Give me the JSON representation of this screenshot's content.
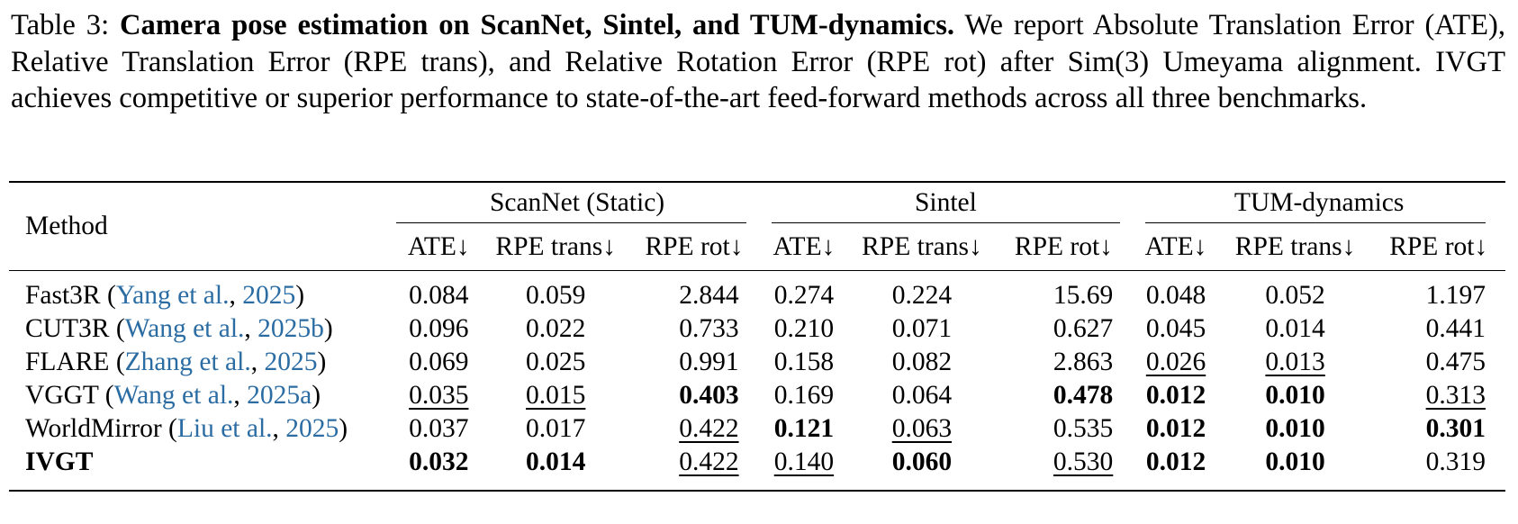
{
  "caption": {
    "label": "Table 3:",
    "title": "Camera pose estimation on ScanNet, Sintel, and TUM-dynamics.",
    "body": "We report Absolute Translation Error (ATE), Relative Translation Error (RPE trans), and Relative Rotation Error (RPE rot) after Sim(3) Umeyama alignment. IVGT achieves competitive or superior performance to state-of-the-art feed-forward methods across all three benchmarks."
  },
  "table": {
    "method_header": "Method",
    "groups": [
      "ScanNet (Static)",
      "Sintel",
      "TUM-dynamics"
    ],
    "metrics": [
      "ATE↓",
      "RPE trans↓",
      "RPE rot↓",
      "ATE↓",
      "RPE trans↓",
      "RPE rot↓",
      "ATE↓",
      "RPE trans↓",
      "RPE rot↓"
    ],
    "rows": [
      {
        "method": "Fast3R",
        "cite_open": " (",
        "cite_authors": "Yang et al.",
        "cite_sep": ", ",
        "cite_year": "2025",
        "cite_close": ")",
        "values": [
          "0.084",
          "0.059",
          "2.844",
          "0.274",
          "0.224",
          "15.69",
          "0.048",
          "0.052",
          "1.197"
        ],
        "style": [
          "",
          "",
          "",
          "",
          "",
          "",
          "",
          "",
          ""
        ]
      },
      {
        "method": "CUT3R",
        "cite_open": " (",
        "cite_authors": "Wang et al.",
        "cite_sep": ", ",
        "cite_year": "2025b",
        "cite_close": ")",
        "values": [
          "0.096",
          "0.022",
          "0.733",
          "0.210",
          "0.071",
          "0.627",
          "0.045",
          "0.014",
          "0.441"
        ],
        "style": [
          "",
          "",
          "",
          "",
          "",
          "",
          "",
          "",
          ""
        ]
      },
      {
        "method": "FLARE",
        "cite_open": " (",
        "cite_authors": "Zhang et al.",
        "cite_sep": ", ",
        "cite_year": "2025",
        "cite_close": ")",
        "values": [
          "0.069",
          "0.025",
          "0.991",
          "0.158",
          "0.082",
          "2.863",
          "0.026",
          "0.013",
          "0.475"
        ],
        "style": [
          "",
          "",
          "",
          "",
          "",
          "",
          "underline",
          "underline",
          ""
        ]
      },
      {
        "method": "VGGT",
        "cite_open": " (",
        "cite_authors": "Wang et al.",
        "cite_sep": ", ",
        "cite_year": "2025a",
        "cite_close": ")",
        "values": [
          "0.035",
          "0.015",
          "0.403",
          "0.169",
          "0.064",
          "0.478",
          "0.012",
          "0.010",
          "0.313"
        ],
        "style": [
          "underline",
          "underline",
          "bold",
          "",
          "",
          "bold",
          "bold",
          "bold",
          "underline"
        ]
      },
      {
        "method": "WorldMirror",
        "cite_open": " (",
        "cite_authors": "Liu et al.",
        "cite_sep": ", ",
        "cite_year": "2025",
        "cite_close": ")",
        "values": [
          "0.037",
          "0.017",
          "0.422",
          "0.121",
          "0.063",
          "0.535",
          "0.012",
          "0.010",
          "0.301"
        ],
        "style": [
          "",
          "",
          "underline",
          "bold",
          "underline",
          "",
          "bold",
          "bold",
          "bold"
        ]
      },
      {
        "method": "IVGT",
        "cite_open": "",
        "cite_authors": "",
        "cite_sep": "",
        "cite_year": "",
        "cite_close": "",
        "values": [
          "0.032",
          "0.014",
          "0.422",
          "0.140",
          "0.060",
          "0.530",
          "0.012",
          "0.010",
          "0.319"
        ],
        "style": [
          "bold",
          "bold",
          "underline",
          "underline",
          "bold",
          "underline",
          "bold",
          "bold",
          ""
        ]
      }
    ]
  }
}
